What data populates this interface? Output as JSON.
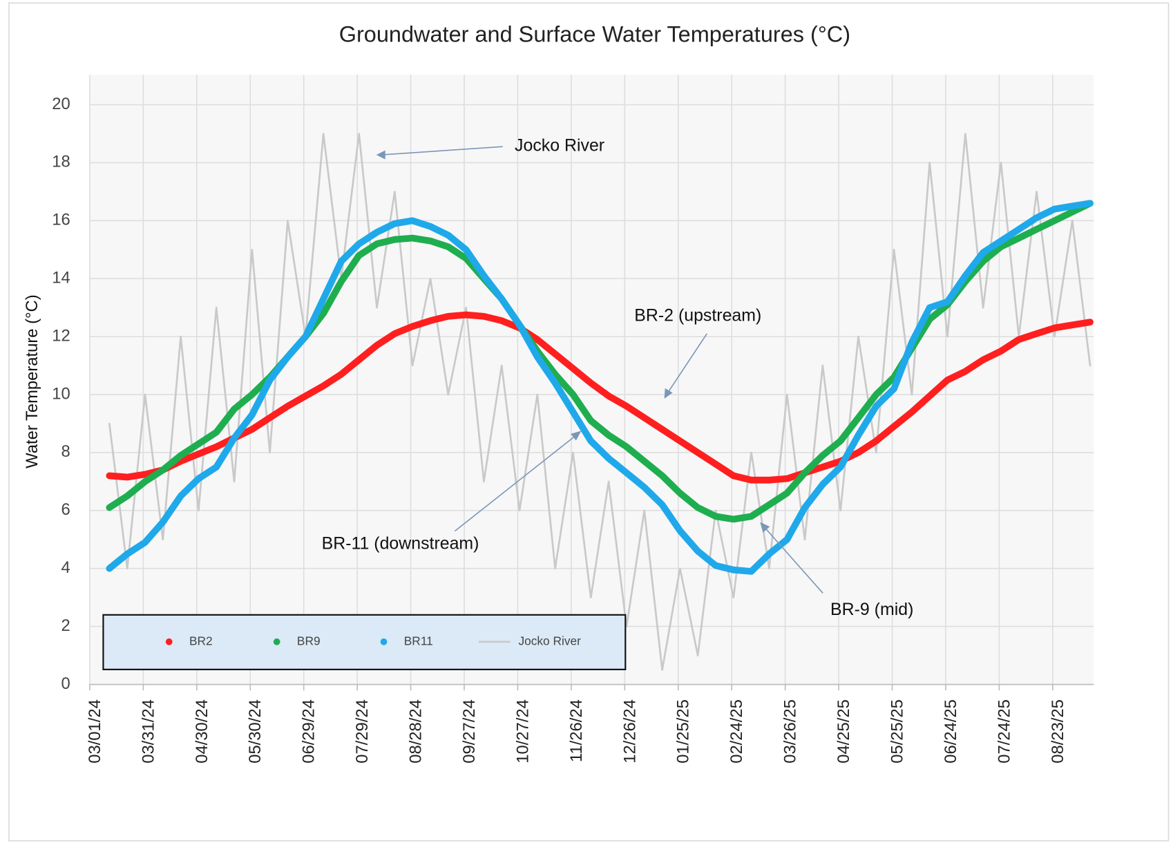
{
  "chart_data": {
    "type": "line",
    "title": "Groundwater and Surface Water Temperatures (°C)",
    "y_label": "Water Temperature (°C)",
    "x": [
      "03/12/24",
      "03/22/24",
      "04/01/24",
      "04/11/24",
      "04/21/24",
      "05/01/24",
      "05/11/24",
      "05/21/24",
      "05/31/24",
      "06/10/24",
      "06/20/24",
      "06/30/24",
      "07/10/24",
      "07/20/24",
      "07/30/24",
      "08/09/24",
      "08/19/24",
      "08/29/24",
      "09/08/24",
      "09/18/24",
      "09/28/24",
      "10/08/24",
      "10/18/24",
      "10/28/24",
      "11/07/24",
      "11/17/24",
      "11/27/24",
      "12/07/24",
      "12/17/24",
      "12/27/24",
      "01/06/25",
      "01/16/25",
      "01/26/25",
      "02/05/25",
      "02/15/25",
      "02/25/25",
      "03/07/25",
      "03/17/25",
      "03/27/25",
      "04/06/25",
      "04/16/25",
      "04/26/25",
      "05/06/25",
      "05/16/25",
      "05/26/25",
      "06/05/25",
      "06/15/25",
      "06/25/25",
      "07/05/25",
      "07/15/25",
      "07/25/25",
      "08/04/25",
      "08/14/25",
      "08/24/25",
      "09/03/25",
      "09/13/25"
    ],
    "series": [
      {
        "name": "BR2",
        "color": "#ff1f1f",
        "values": [
          7.2,
          7.15,
          7.25,
          7.4,
          7.7,
          7.95,
          8.2,
          8.5,
          8.8,
          9.2,
          9.6,
          9.95,
          10.3,
          10.7,
          11.2,
          11.7,
          12.1,
          12.35,
          12.55,
          12.7,
          12.75,
          12.7,
          12.55,
          12.3,
          11.9,
          11.4,
          10.9,
          10.4,
          9.95,
          9.6,
          9.2,
          8.8,
          8.4,
          8.0,
          7.6,
          7.2,
          7.05,
          7.05,
          7.1,
          7.3,
          7.5,
          7.7,
          8.0,
          8.4,
          8.9,
          9.4,
          9.95,
          10.5,
          10.8,
          11.2,
          11.5,
          11.9,
          12.1,
          12.3,
          12.4,
          12.5
        ]
      },
      {
        "name": "BR9",
        "color": "#1fae4f",
        "values": [
          6.1,
          6.5,
          7.0,
          7.4,
          7.9,
          8.3,
          8.7,
          9.5,
          10.0,
          10.6,
          11.3,
          12.0,
          12.8,
          13.9,
          14.8,
          15.2,
          15.35,
          15.4,
          15.3,
          15.1,
          14.7,
          14.0,
          13.3,
          12.4,
          11.5,
          10.7,
          10.0,
          9.1,
          8.6,
          8.2,
          7.7,
          7.2,
          6.6,
          6.1,
          5.8,
          5.7,
          5.8,
          6.2,
          6.6,
          7.3,
          7.9,
          8.4,
          9.2,
          10.0,
          10.6,
          11.6,
          12.6,
          13.1,
          13.9,
          14.6,
          15.1,
          15.4,
          15.7,
          16.0,
          16.3,
          16.6
        ]
      },
      {
        "name": "BR11",
        "color": "#1fa9ea",
        "values": [
          4.0,
          4.5,
          4.9,
          5.6,
          6.5,
          7.1,
          7.5,
          8.5,
          9.3,
          10.5,
          11.3,
          12.0,
          13.3,
          14.6,
          15.2,
          15.6,
          15.9,
          16.0,
          15.8,
          15.5,
          15.0,
          14.1,
          13.3,
          12.4,
          11.3,
          10.4,
          9.4,
          8.4,
          7.8,
          7.3,
          6.8,
          6.2,
          5.3,
          4.6,
          4.1,
          3.95,
          3.9,
          4.5,
          5.0,
          6.1,
          6.9,
          7.5,
          8.6,
          9.6,
          10.2,
          11.8,
          13.0,
          13.2,
          14.1,
          14.9,
          15.3,
          15.7,
          16.1,
          16.4,
          16.5,
          16.6
        ]
      },
      {
        "name": "Jocko River",
        "color": "#c9c9c9",
        "values": [
          9,
          4,
          10,
          5,
          12,
          6,
          13,
          7,
          15,
          8,
          16,
          12,
          19,
          14,
          19,
          13,
          17,
          11,
          14,
          10,
          13,
          7,
          11,
          6,
          10,
          4,
          8,
          3,
          7,
          2,
          6,
          0.5,
          4,
          1,
          6,
          3,
          8,
          4,
          10,
          5,
          11,
          6,
          12,
          8,
          15,
          10,
          18,
          12,
          19,
          13,
          18,
          12,
          17,
          12,
          16,
          11
        ]
      }
    ],
    "xlim": [
      "03/01/24",
      "09/15/25"
    ],
    "xticks": [
      "03/01/24",
      "03/31/24",
      "04/30/24",
      "05/30/24",
      "06/29/24",
      "07/29/24",
      "08/28/24",
      "09/27/24",
      "10/27/24",
      "11/26/24",
      "12/26/24",
      "01/25/25",
      "02/24/25",
      "03/26/25",
      "04/25/25",
      "05/25/25",
      "06/24/25",
      "07/24/25",
      "08/23/25"
    ],
    "ylim": [
      0,
      20
    ],
    "yticks": [
      0,
      2,
      4,
      6,
      8,
      10,
      12,
      14,
      16,
      18,
      20
    ],
    "grid": true,
    "legend": "lower left",
    "annotations": [
      "Jocko River",
      "BR-2 (upstream)",
      "BR-11 (downstream)",
      "BR-9 (mid)"
    ]
  }
}
